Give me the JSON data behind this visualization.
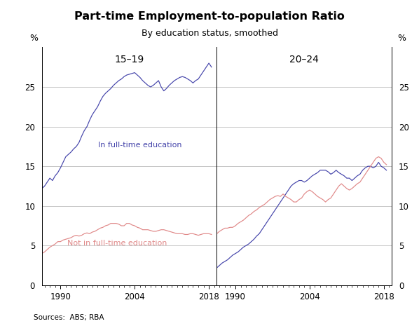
{
  "title": "Part-time Employment-to-population Ratio",
  "subtitle": "By education status, smoothed",
  "source": "Sources:  ABS; RBA",
  "left_panel_label": "15–19",
  "right_panel_label": "20–24",
  "ylabel_left": "%",
  "ylabel_right": "%",
  "ylim": [
    0,
    30
  ],
  "yticks": [
    0,
    5,
    10,
    15,
    20,
    25
  ],
  "xticks": [
    1990,
    2004,
    2018
  ],
  "xmin": 1986.5,
  "xmax": 2019.5,
  "color_fulltime": "#4444aa",
  "color_notfulltime": "#e08888",
  "label_fulltime": "In full-time education",
  "label_notfulltime": "Not in full-time education",
  "panel1_fulltime_x": [
    1986.5,
    1987,
    1987.5,
    1988,
    1988.5,
    1989,
    1989.5,
    1990,
    1990.5,
    1991,
    1991.5,
    1992,
    1992.5,
    1993,
    1993.5,
    1994,
    1994.5,
    1995,
    1995.5,
    1996,
    1996.5,
    1997,
    1997.5,
    1998,
    1998.5,
    1999,
    1999.5,
    2000,
    2000.5,
    2001,
    2001.5,
    2002,
    2002.5,
    2003,
    2003.5,
    2004,
    2004.5,
    2005,
    2005.5,
    2006,
    2006.5,
    2007,
    2007.5,
    2008,
    2008.5,
    2009,
    2009.5,
    2010,
    2010.5,
    2011,
    2011.5,
    2012,
    2012.5,
    2013,
    2013.5,
    2014,
    2014.5,
    2015,
    2015.5,
    2016,
    2016.5,
    2017,
    2017.5,
    2018,
    2018.5
  ],
  "panel1_fulltime_y": [
    12.2,
    12.5,
    13.0,
    13.5,
    13.2,
    13.8,
    14.2,
    14.8,
    15.5,
    16.2,
    16.5,
    16.8,
    17.2,
    17.5,
    18.0,
    18.8,
    19.5,
    20.0,
    20.8,
    21.5,
    22.0,
    22.5,
    23.2,
    23.8,
    24.2,
    24.5,
    24.8,
    25.2,
    25.5,
    25.8,
    26.0,
    26.3,
    26.5,
    26.6,
    26.7,
    26.8,
    26.5,
    26.2,
    25.8,
    25.5,
    25.2,
    25.0,
    25.2,
    25.5,
    25.8,
    25.0,
    24.5,
    24.8,
    25.2,
    25.5,
    25.8,
    26.0,
    26.2,
    26.3,
    26.2,
    26.0,
    25.8,
    25.5,
    25.8,
    26.0,
    26.5,
    27.0,
    27.5,
    28.0,
    27.5
  ],
  "panel1_notfulltime_x": [
    1986.5,
    1987,
    1987.5,
    1988,
    1988.5,
    1989,
    1989.5,
    1990,
    1990.5,
    1991,
    1991.5,
    1992,
    1992.5,
    1993,
    1993.5,
    1994,
    1994.5,
    1995,
    1995.5,
    1996,
    1996.5,
    1997,
    1997.5,
    1998,
    1998.5,
    1999,
    1999.5,
    2000,
    2000.5,
    2001,
    2001.5,
    2002,
    2002.5,
    2003,
    2003.5,
    2004,
    2004.5,
    2005,
    2005.5,
    2006,
    2006.5,
    2007,
    2007.5,
    2008,
    2008.5,
    2009,
    2009.5,
    2010,
    2010.5,
    2011,
    2011.5,
    2012,
    2012.5,
    2013,
    2013.5,
    2014,
    2014.5,
    2015,
    2015.5,
    2016,
    2016.5,
    2017,
    2017.5,
    2018,
    2018.5
  ],
  "panel1_notfulltime_y": [
    4.0,
    4.2,
    4.5,
    4.8,
    5.0,
    5.2,
    5.5,
    5.5,
    5.7,
    5.8,
    5.9,
    6.0,
    6.2,
    6.3,
    6.2,
    6.3,
    6.5,
    6.6,
    6.5,
    6.7,
    6.8,
    7.0,
    7.2,
    7.3,
    7.5,
    7.6,
    7.8,
    7.8,
    7.8,
    7.7,
    7.5,
    7.5,
    7.8,
    7.8,
    7.6,
    7.5,
    7.3,
    7.2,
    7.0,
    7.0,
    7.0,
    6.9,
    6.8,
    6.8,
    6.9,
    7.0,
    7.0,
    6.9,
    6.8,
    6.7,
    6.6,
    6.5,
    6.5,
    6.5,
    6.4,
    6.4,
    6.5,
    6.5,
    6.4,
    6.3,
    6.4,
    6.5,
    6.5,
    6.5,
    6.4
  ],
  "panel2_fulltime_x": [
    1986.5,
    1987,
    1987.5,
    1988,
    1988.5,
    1989,
    1989.5,
    1990,
    1990.5,
    1991,
    1991.5,
    1992,
    1992.5,
    1993,
    1993.5,
    1994,
    1994.5,
    1995,
    1995.5,
    1996,
    1996.5,
    1997,
    1997.5,
    1998,
    1998.5,
    1999,
    1999.5,
    2000,
    2000.5,
    2001,
    2001.5,
    2002,
    2002.5,
    2003,
    2003.5,
    2004,
    2004.5,
    2005,
    2005.5,
    2006,
    2006.5,
    2007,
    2007.5,
    2008,
    2008.5,
    2009,
    2009.5,
    2010,
    2010.5,
    2011,
    2011.5,
    2012,
    2012.5,
    2013,
    2013.5,
    2014,
    2014.5,
    2015,
    2015.5,
    2016,
    2016.5,
    2017,
    2017.5,
    2018,
    2018.5
  ],
  "panel2_fulltime_y": [
    2.2,
    2.5,
    2.8,
    3.0,
    3.2,
    3.5,
    3.8,
    4.0,
    4.2,
    4.5,
    4.8,
    5.0,
    5.2,
    5.5,
    5.8,
    6.2,
    6.5,
    7.0,
    7.5,
    8.0,
    8.5,
    9.0,
    9.5,
    10.0,
    10.5,
    11.0,
    11.5,
    12.0,
    12.5,
    12.8,
    13.0,
    13.2,
    13.2,
    13.0,
    13.2,
    13.5,
    13.8,
    14.0,
    14.2,
    14.5,
    14.5,
    14.5,
    14.3,
    14.0,
    14.2,
    14.5,
    14.2,
    14.0,
    13.8,
    13.5,
    13.5,
    13.2,
    13.5,
    13.8,
    14.0,
    14.5,
    14.8,
    15.0,
    15.0,
    14.8,
    15.0,
    15.5,
    15.0,
    14.8,
    14.5
  ],
  "panel2_notfulltime_x": [
    1986.5,
    1987,
    1987.5,
    1988,
    1988.5,
    1989,
    1989.5,
    1990,
    1990.5,
    1991,
    1991.5,
    1992,
    1992.5,
    1993,
    1993.5,
    1994,
    1994.5,
    1995,
    1995.5,
    1996,
    1996.5,
    1997,
    1997.5,
    1998,
    1998.5,
    1999,
    1999.5,
    2000,
    2000.5,
    2001,
    2001.5,
    2002,
    2002.5,
    2003,
    2003.5,
    2004,
    2004.5,
    2005,
    2005.5,
    2006,
    2006.5,
    2007,
    2007.5,
    2008,
    2008.5,
    2009,
    2009.5,
    2010,
    2010.5,
    2011,
    2011.5,
    2012,
    2012.5,
    2013,
    2013.5,
    2014,
    2014.5,
    2015,
    2015.5,
    2016,
    2016.5,
    2017,
    2017.5,
    2018,
    2018.5
  ],
  "panel2_notfulltime_y": [
    6.5,
    6.8,
    7.0,
    7.2,
    7.2,
    7.3,
    7.3,
    7.5,
    7.8,
    8.0,
    8.2,
    8.5,
    8.8,
    9.0,
    9.3,
    9.5,
    9.8,
    10.0,
    10.2,
    10.5,
    10.8,
    11.0,
    11.2,
    11.3,
    11.2,
    11.5,
    11.2,
    11.0,
    10.8,
    10.5,
    10.5,
    10.8,
    11.0,
    11.5,
    11.8,
    12.0,
    11.8,
    11.5,
    11.2,
    11.0,
    10.8,
    10.5,
    10.8,
    11.0,
    11.5,
    12.0,
    12.5,
    12.8,
    12.5,
    12.2,
    12.0,
    12.2,
    12.5,
    12.8,
    13.0,
    13.5,
    14.0,
    14.5,
    15.0,
    15.5,
    16.0,
    16.2,
    16.0,
    15.5,
    15.2
  ]
}
